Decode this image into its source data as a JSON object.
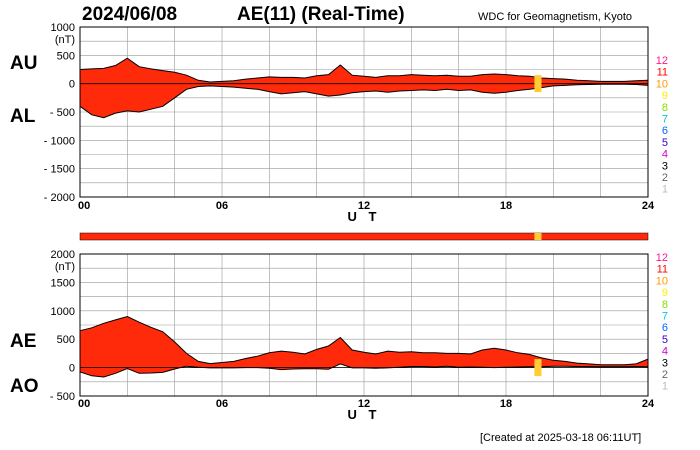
{
  "header": {
    "date": "2024/06/08",
    "title": "AE(11) (Real-Time)",
    "source": "WDC for Geomagnetism, Kyoto"
  },
  "footer": {
    "created": "[Created at 2025-03-18 06:11UT]"
  },
  "colors": {
    "fill": "#ff2a0a",
    "outline": "#000000",
    "grid": "#999999",
    "bar": "#ff2a0a",
    "bar_gap": "#ffcc33"
  },
  "station_labels": {
    "items": [
      {
        "label": "12",
        "color": "#ff1a8c"
      },
      {
        "label": "11",
        "color": "#ff0000"
      },
      {
        "label": "10",
        "color": "#ff9900"
      },
      {
        "label": "9",
        "color": "#ffee00"
      },
      {
        "label": "8",
        "color": "#88dd00"
      },
      {
        "label": "7",
        "color": "#00cccc"
      },
      {
        "label": "6",
        "color": "#0066ff"
      },
      {
        "label": "5",
        "color": "#3300cc"
      },
      {
        "label": "4",
        "color": "#cc00cc"
      },
      {
        "label": "3",
        "color": "#000000"
      },
      {
        "label": "2",
        "color": "#666666"
      },
      {
        "label": "1",
        "color": "#bbbbbb"
      }
    ]
  },
  "chart_data": [
    {
      "type": "area",
      "id": "au-al",
      "series_labels": [
        "AU",
        "AL"
      ],
      "y_unit": "(nT)",
      "xlabel": "U T",
      "xlim": [
        0,
        24
      ],
      "ylim": [
        -2000,
        1000
      ],
      "x_ticks": [
        "00",
        "06",
        "12",
        "18",
        "24"
      ],
      "y_ticks": [
        "1000",
        "500",
        "0",
        "- 500",
        "- 1000",
        "- 1500",
        "- 2000"
      ],
      "x": [
        0,
        0.5,
        1,
        1.5,
        2,
        2.5,
        3,
        3.5,
        4,
        4.5,
        5,
        5.5,
        6,
        6.5,
        7,
        7.5,
        8,
        8.5,
        9,
        9.5,
        10,
        10.5,
        11,
        11.5,
        12,
        12.5,
        13,
        13.5,
        14,
        14.5,
        15,
        15.5,
        16,
        16.5,
        17,
        17.5,
        18,
        18.5,
        19,
        19.5,
        20,
        20.5,
        21,
        21.5,
        22,
        22.5,
        23,
        23.5,
        24
      ],
      "series": [
        {
          "name": "AU",
          "values": [
            250,
            260,
            270,
            320,
            450,
            300,
            260,
            230,
            200,
            150,
            60,
            30,
            40,
            50,
            80,
            100,
            120,
            110,
            110,
            100,
            140,
            160,
            330,
            150,
            130,
            110,
            140,
            140,
            160,
            150,
            140,
            150,
            130,
            130,
            160,
            170,
            160,
            140,
            130,
            100,
            90,
            80,
            60,
            50,
            40,
            40,
            40,
            50,
            60
          ]
        },
        {
          "name": "AL",
          "values": [
            -400,
            -550,
            -600,
            -520,
            -480,
            -500,
            -450,
            -400,
            -250,
            -100,
            -50,
            -40,
            -50,
            -60,
            -80,
            -100,
            -140,
            -180,
            -160,
            -140,
            -180,
            -220,
            -200,
            -160,
            -140,
            -130,
            -150,
            -130,
            -120,
            -110,
            -120,
            -100,
            -120,
            -110,
            -150,
            -170,
            -150,
            -120,
            -100,
            -70,
            -40,
            -30,
            -20,
            -15,
            -10,
            -10,
            -10,
            -15,
            -30
          ]
        }
      ]
    },
    {
      "type": "area",
      "id": "ae-ao",
      "series_labels": [
        "AE",
        "AO"
      ],
      "y_unit": "(nT)",
      "xlabel": "U T",
      "xlim": [
        0,
        24
      ],
      "ylim": [
        -500,
        2000
      ],
      "x_ticks": [
        "00",
        "06",
        "12",
        "18",
        "24"
      ],
      "y_ticks": [
        "2000",
        "1500",
        "1000",
        "500",
        "0",
        "- 500"
      ],
      "x": [
        0,
        0.5,
        1,
        1.5,
        2,
        2.5,
        3,
        3.5,
        4,
        4.5,
        5,
        5.5,
        6,
        6.5,
        7,
        7.5,
        8,
        8.5,
        9,
        9.5,
        10,
        10.5,
        11,
        11.5,
        12,
        12.5,
        13,
        13.5,
        14,
        14.5,
        15,
        15.5,
        16,
        16.5,
        17,
        17.5,
        18,
        18.5,
        19,
        19.5,
        20,
        20.5,
        21,
        21.5,
        22,
        22.5,
        23,
        23.5,
        24
      ],
      "series": [
        {
          "name": "AE",
          "values": [
            650,
            700,
            780,
            840,
            900,
            800,
            710,
            630,
            450,
            250,
            110,
            70,
            90,
            110,
            160,
            200,
            260,
            290,
            270,
            240,
            320,
            380,
            530,
            310,
            270,
            240,
            290,
            270,
            280,
            260,
            260,
            250,
            250,
            240,
            310,
            340,
            310,
            260,
            230,
            170,
            130,
            110,
            80,
            65,
            50,
            50,
            50,
            65,
            150
          ]
        },
        {
          "name": "AO",
          "values": [
            -75,
            -145,
            -165,
            -100,
            -15,
            -100,
            -95,
            -85,
            -25,
            25,
            5,
            -5,
            -5,
            -5,
            0,
            0,
            -10,
            -35,
            -25,
            -20,
            -20,
            -30,
            65,
            -5,
            -5,
            -10,
            -5,
            5,
            20,
            20,
            10,
            25,
            5,
            10,
            5,
            0,
            5,
            10,
            15,
            15,
            25,
            25,
            20,
            18,
            15,
            15,
            15,
            18,
            15
          ]
        }
      ]
    }
  ],
  "bar": {
    "gap_start": 19.2,
    "gap_end": 19.5
  }
}
